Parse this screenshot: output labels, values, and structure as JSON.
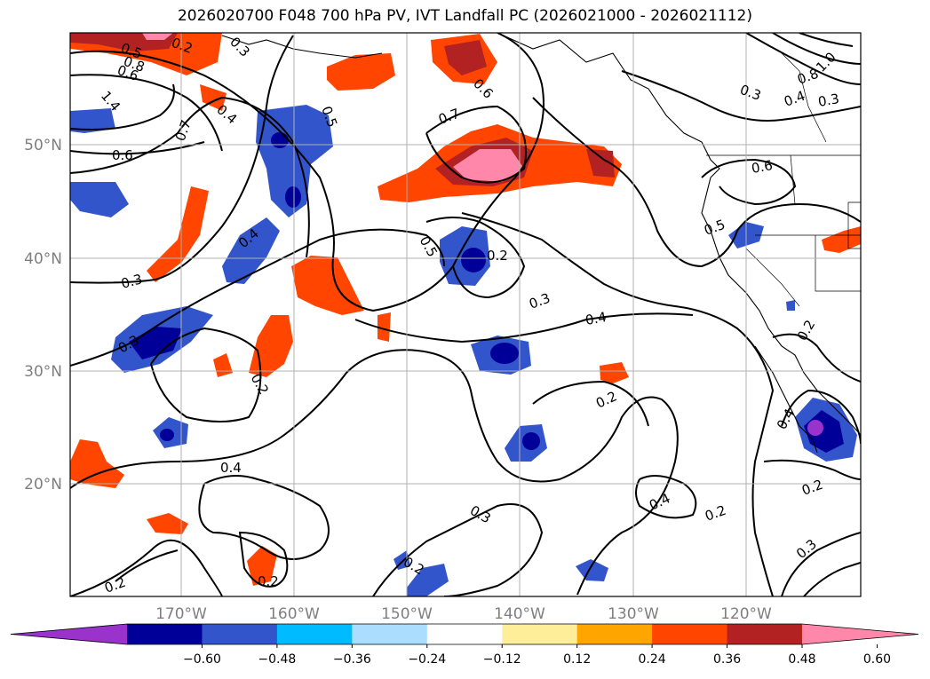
{
  "title": "2026020700 F048 700 hPa PV, IVT Landfall PC (2026021000 - 2026021112)",
  "axes": {
    "lat_labels": [
      "50°N",
      "40°N",
      "30°N",
      "20°N"
    ],
    "lon_labels": [
      "170°W",
      "160°W",
      "150°W",
      "140°W",
      "130°W",
      "120°W"
    ]
  },
  "colorbar": {
    "ticks": [
      "−0.60",
      "−0.48",
      "−0.36",
      "−0.24",
      "−0.12",
      "0.12",
      "0.24",
      "0.36",
      "0.48",
      "0.60"
    ],
    "colors": [
      "#9933cc",
      "#000099",
      "#3355cc",
      "#00bbff",
      "#aaddff",
      "#ffffff",
      "#ffee99",
      "#ffa500",
      "#ff4500",
      "#b22222",
      "#ff88aa"
    ]
  },
  "contour_labels": [
    "0.5",
    "0.2",
    "0.3",
    "0.6",
    "0.8",
    "1.4",
    "0.4",
    "0.7",
    "0.6",
    "0.5",
    "0.7",
    "0.6",
    "0.3",
    "1.0",
    "0.8",
    "0.4",
    "0.3",
    "0.6",
    "0.5",
    "0.5",
    "0.4",
    "0.2",
    "0.3",
    "0.3",
    "0.3",
    "0.4",
    "0.2",
    "0.2",
    "0.2",
    "0.4",
    "0.4",
    "0.2",
    "0.4",
    "0.3",
    "0.2",
    "0.2",
    "0.2",
    "0.2",
    "0.3"
  ]
}
